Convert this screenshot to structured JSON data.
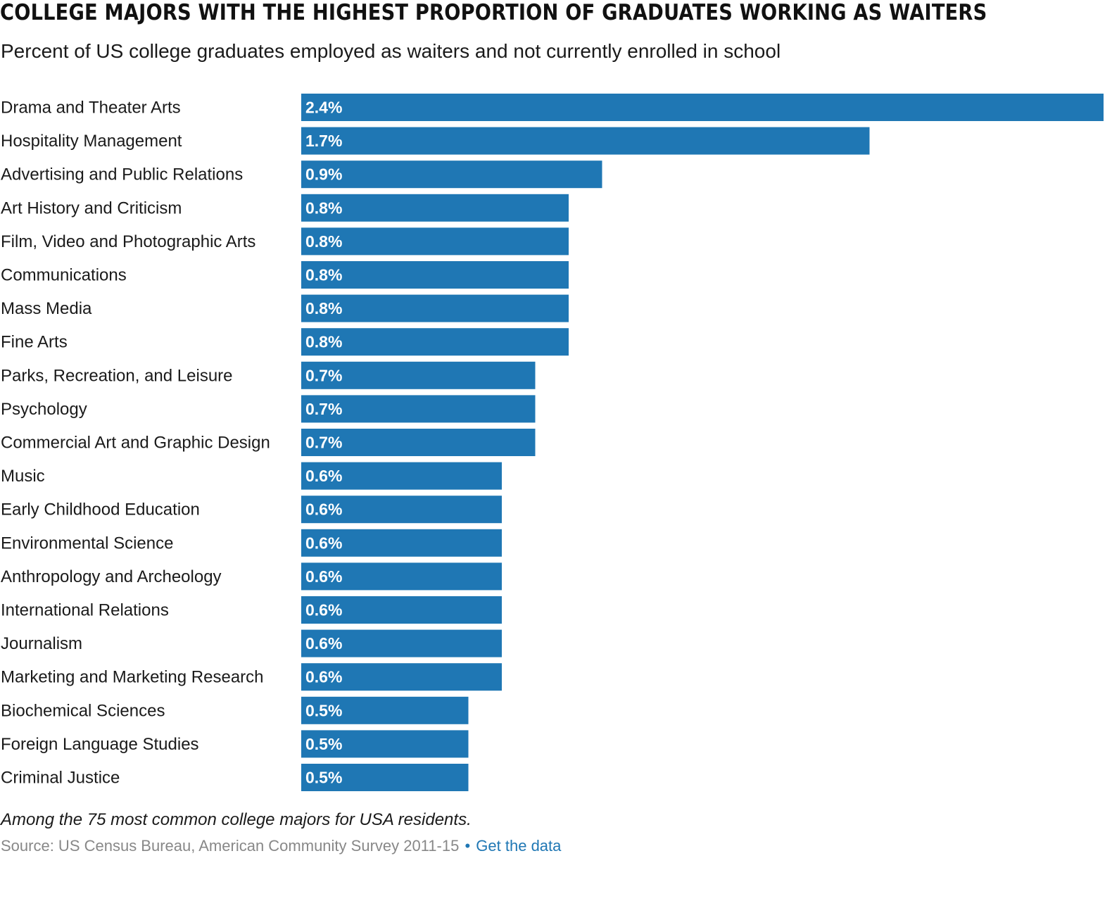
{
  "chart_data": {
    "type": "bar",
    "orientation": "horizontal",
    "title": "COLLEGE MAJORS WITH THE HIGHEST PROPORTION OF GRADUATES WORKING AS WAITERS",
    "subtitle": "Percent of US college graduates employed as waiters and not currently enrolled in school",
    "categories": [
      "Drama and Theater Arts",
      "Hospitality Management",
      "Advertising and Public Relations",
      "Art History and Criticism",
      "Film, Video and Photographic Arts",
      "Communications",
      "Mass Media",
      "Fine Arts",
      "Parks, Recreation, and Leisure",
      "Psychology",
      "Commercial Art and Graphic Design",
      "Music",
      "Early Childhood Education",
      "Environmental Science",
      "Anthropology and Archeology",
      "International Relations",
      "Journalism",
      "Marketing and Marketing Research",
      "Biochemical Sciences",
      "Foreign Language Studies",
      "Criminal Justice"
    ],
    "values": [
      2.4,
      1.7,
      0.9,
      0.8,
      0.8,
      0.8,
      0.8,
      0.8,
      0.7,
      0.7,
      0.7,
      0.6,
      0.6,
      0.6,
      0.6,
      0.6,
      0.6,
      0.6,
      0.5,
      0.5,
      0.5
    ],
    "value_labels": [
      "2.4%",
      "1.7%",
      "0.9%",
      "0.8%",
      "0.8%",
      "0.8%",
      "0.8%",
      "0.8%",
      "0.7%",
      "0.7%",
      "0.7%",
      "0.6%",
      "0.6%",
      "0.6%",
      "0.6%",
      "0.6%",
      "0.6%",
      "0.6%",
      "0.5%",
      "0.5%",
      "0.5%"
    ],
    "unit": "%",
    "xlim": [
      0,
      2.4
    ],
    "grid": false,
    "legend": "none",
    "xlabel": "",
    "ylabel": "",
    "bar_color": "#1f77b4",
    "value_label_color": "#ffffff"
  },
  "footer": {
    "note": "Among the 75 most common college majors for USA residents.",
    "source": "Source: US Census Bureau, American Community Survey 2011-15",
    "separator": "•",
    "link_label": "Get the data",
    "link_color": "#1f77b4"
  }
}
